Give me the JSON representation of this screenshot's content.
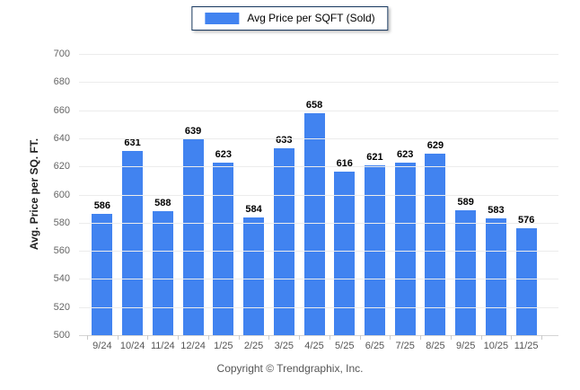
{
  "legend": {
    "label": "Avg Price per SQFT (Sold)"
  },
  "footer": {
    "text": "Copyright © Trendgraphix, Inc."
  },
  "chart_data": {
    "type": "bar",
    "title": "",
    "series_name": "Avg Price per SQFT (Sold)",
    "categories": [
      "9/24",
      "10/24",
      "11/24",
      "12/24",
      "1/25",
      "2/25",
      "3/25",
      "4/25",
      "5/25",
      "6/25",
      "7/25",
      "8/25",
      "9/25",
      "10/25",
      "11/25"
    ],
    "values": [
      586,
      631,
      588,
      639,
      623,
      584,
      633,
      658,
      616,
      621,
      623,
      629,
      589,
      583,
      576
    ],
    "xlabel": "",
    "ylabel": "Avg. Price per SQ. FT.",
    "ylim": [
      500,
      700
    ],
    "ytick_step": 20,
    "grid": true,
    "value_labels": true,
    "legend_position": "top-center"
  },
  "colors": {
    "bar": "#4183F0",
    "grid": "#ececec",
    "axis_line": "#d5d5d5",
    "tick": "#c9c9c9",
    "legend_border": "#17375E",
    "value_label": "#000000",
    "axis_text": "#666666"
  }
}
